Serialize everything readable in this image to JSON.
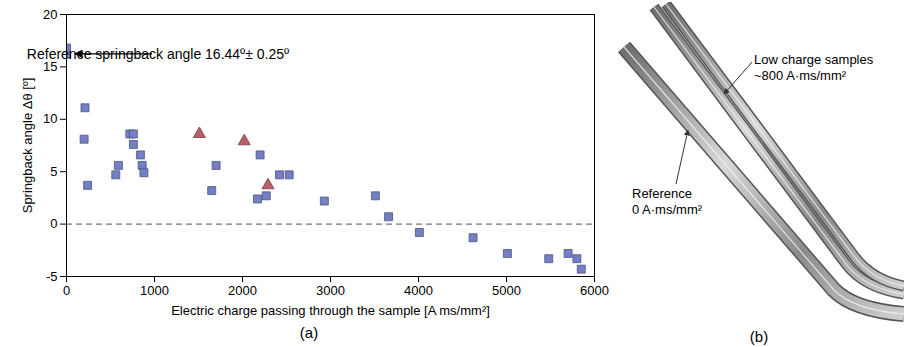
{
  "chart_data": {
    "type": "scatter",
    "caption": "(a)",
    "x_label": "Electric charge passing through the sample [A ms/mm²]",
    "y_label": "Springback angle Δθ [º]",
    "xlim": [
      0,
      6000
    ],
    "xticks": [
      0,
      1000,
      2000,
      3000,
      4000,
      5000,
      6000
    ],
    "ylim": [
      -5,
      20
    ],
    "yticks": [
      -5,
      0,
      5,
      10,
      15,
      20
    ],
    "grid": false,
    "hline": {
      "value": 0,
      "line_style": "dashed"
    },
    "annotation": "Reference springback angle 16.44º± 0.25º",
    "series": [
      {
        "color": "#7480c6",
        "marker": "square",
        "x": [
          0,
          0,
          210,
          200,
          240,
          560,
          590,
          720,
          760,
          760,
          840,
          860,
          880,
          1650,
          1700,
          2170,
          2200,
          2270,
          2420,
          2530,
          2930,
          3510,
          3660,
          4010,
          4620,
          5010,
          5480,
          5700,
          5800,
          5850
        ],
        "values": [
          16.2,
          16.8,
          11.1,
          8.1,
          3.7,
          4.7,
          5.6,
          8.6,
          8.6,
          7.6,
          6.6,
          5.6,
          4.9,
          3.2,
          5.6,
          2.4,
          6.6,
          2.7,
          4.7,
          4.7,
          2.2,
          2.7,
          0.7,
          -0.8,
          -1.3,
          -2.8,
          -3.3,
          -2.8,
          -3.3,
          -4.3
        ]
      },
      {
        "color": "#b8606a",
        "marker": "triangle",
        "x": [
          1510,
          2020,
          2290
        ],
        "values": [
          8.6,
          7.9,
          3.7
        ]
      }
    ]
  },
  "photo": {
    "caption": "(b)",
    "labels": [
      {
        "lines": [
          "Low charge samples",
          "~800 A·ms/mm²"
        ]
      },
      {
        "lines": [
          "Reference",
          "0 A·ms/mm²"
        ]
      }
    ]
  }
}
